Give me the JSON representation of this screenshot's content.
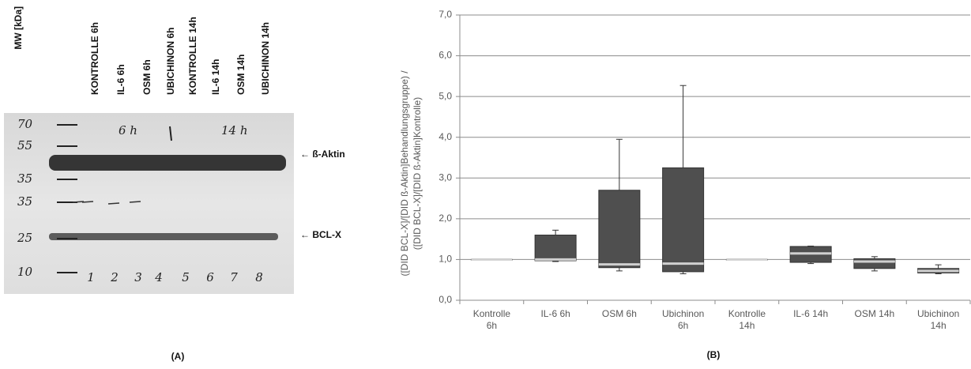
{
  "panel_a": {
    "mw_label": "MW [kDa]",
    "lanes": [
      "KONTROLLE 6h",
      "IL-6 6h",
      "OSM 6h",
      "UBICHINON 6h",
      "KONTROLLE 14h",
      "IL-6 14h",
      "OSM 14h",
      "UBICHINON 14h"
    ],
    "markers": [
      "70",
      "55",
      "35",
      "35",
      "25",
      "10"
    ],
    "timepoints": [
      "6 h",
      "14 h"
    ],
    "lane_numbers": [
      "1",
      "2",
      "3",
      "4",
      "5",
      "6",
      "7",
      "8"
    ],
    "band_labels": [
      "← ß-Aktin",
      "← BCL-X"
    ],
    "caption": "(A)"
  },
  "chart_data": {
    "type": "box",
    "caption": "(B)",
    "y_label": [
      "([DID BCL-X]/[DID ß-Aktin]Behandlungsgruppe) /",
      "([DID BCL-X]/[DID ß-Aktin]Kontrolle)"
    ],
    "categories": [
      "Kontrolle\n6h",
      "IL-6 6h",
      "OSM 6h",
      "Ubichinon\n6h",
      "Kontrolle\n14h",
      "IL-6 14h",
      "OSM 14h",
      "Ubichinon\n14h"
    ],
    "whisker_low": [
      1.0,
      0.95,
      0.72,
      0.65,
      1.0,
      0.9,
      0.72,
      0.65
    ],
    "q1": [
      1.0,
      0.97,
      0.8,
      0.7,
      1.0,
      0.93,
      0.78,
      0.67
    ],
    "median": [
      1.0,
      1.0,
      0.88,
      0.9,
      1.0,
      1.15,
      0.95,
      0.72
    ],
    "q3": [
      1.0,
      1.6,
      2.7,
      3.25,
      1.0,
      1.32,
      1.02,
      0.78
    ],
    "whisker_high": [
      1.0,
      1.72,
      3.95,
      5.27,
      1.0,
      1.33,
      1.07,
      0.87
    ],
    "box_color": "#4f4f4f",
    "median_color": "#d0d0d0",
    "ylim": [
      0,
      7
    ],
    "yticks": [
      {
        "value": 0,
        "label": "0,0"
      },
      {
        "value": 1,
        "label": "1,0"
      },
      {
        "value": 2,
        "label": "2,0"
      },
      {
        "value": 3,
        "label": "3,0"
      },
      {
        "value": 4,
        "label": "4,0"
      },
      {
        "value": 5,
        "label": "5,0"
      },
      {
        "value": 6,
        "label": "6,0"
      },
      {
        "value": 7,
        "label": "7,0"
      }
    ],
    "grid": true
  }
}
